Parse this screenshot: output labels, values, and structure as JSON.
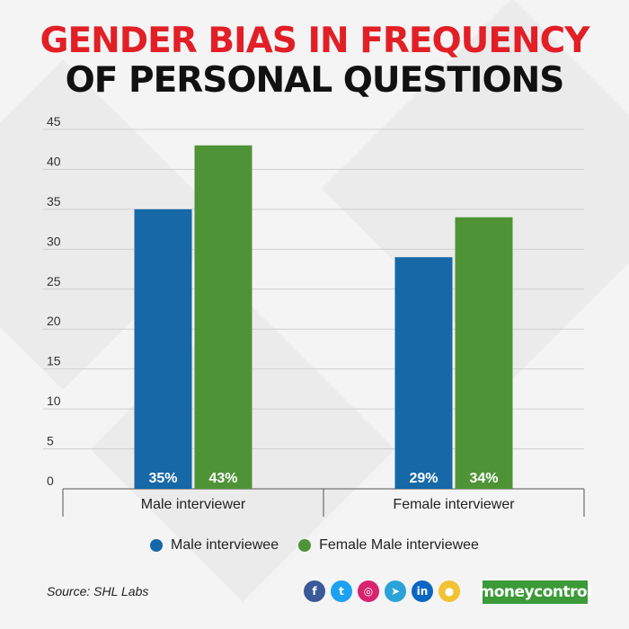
{
  "title_line1": "GENDER BIAS IN FREQUENCY",
  "title_line2": "OF PERSONAL QUESTIONS",
  "chart_data": {
    "type": "bar",
    "categories": [
      "Male interviewer",
      "Female interviewer"
    ],
    "series": [
      {
        "name": "Male interviewee",
        "values": [
          35,
          29
        ],
        "labels": [
          "35%",
          "29%"
        ],
        "color": "#1668a7"
      },
      {
        "name": "Female Male interviewee",
        "values": [
          43,
          34
        ],
        "labels": [
          "43%",
          "34%"
        ],
        "color": "#4e9436"
      }
    ],
    "yticks": [
      0,
      5,
      10,
      15,
      20,
      25,
      30,
      35,
      40,
      45
    ],
    "ylim": [
      0,
      45
    ],
    "grid": true,
    "legend_position": "bottom"
  },
  "source": "Source: SHL Labs",
  "social_icons": [
    {
      "name": "facebook-icon",
      "glyph": "f",
      "color": "#3b5998"
    },
    {
      "name": "twitter-icon",
      "glyph": "t",
      "color": "#1da1f2"
    },
    {
      "name": "instagram-icon",
      "glyph": "◎",
      "color": "#d6246e"
    },
    {
      "name": "telegram-icon",
      "glyph": "➤",
      "color": "#2aa3d8"
    },
    {
      "name": "linkedin-icon",
      "glyph": "in",
      "color": "#0a66c2"
    },
    {
      "name": "koo-icon",
      "glyph": "●",
      "color": "#f2c230"
    }
  ],
  "brand": "moneycontrol"
}
